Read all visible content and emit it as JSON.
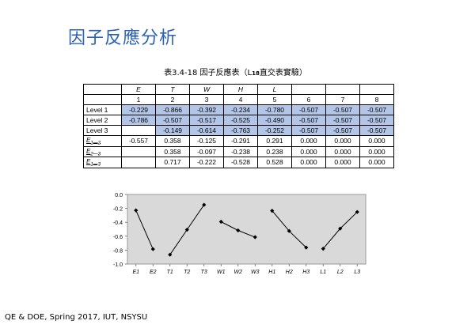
{
  "slide": {
    "title": "因子反應分析",
    "footer": "QE & DOE, Spring 2017, IUT, NSYSU"
  },
  "table": {
    "caption_main": "表3.4-18  因子反應表（L",
    "caption_sub": "18",
    "caption_tail": "直交表實驗）",
    "factor_row": [
      "E",
      "T",
      "W",
      "H",
      "L",
      "",
      "",
      ""
    ],
    "column_numbers": [
      "1",
      "2",
      "3",
      "4",
      "5",
      "6",
      "7",
      "8"
    ],
    "rows": [
      {
        "label": "Level 1",
        "cells": [
          "-0.229",
          "-0.866",
          "-0.392",
          "-0.234",
          "-0.780",
          "-0.507",
          "-0.507",
          "-0.507"
        ]
      },
      {
        "label": "Level 2",
        "cells": [
          "-0.786",
          "-0.507",
          "-0.517",
          "-0.525",
          "-0.490",
          "-0.507",
          "-0.507",
          "-0.507"
        ]
      },
      {
        "label": "Level 3",
        "cells": [
          "",
          "-0.149",
          "-0.614",
          "-0.763",
          "-0.252",
          "-0.507",
          "-0.507",
          "-0.507"
        ]
      },
      {
        "label_base": "E",
        "label_sub": "1—2",
        "cells": [
          "-0.557",
          "0.358",
          "-0.125",
          "-0.291",
          "0.291",
          "0.000",
          "0.000",
          "0.000"
        ]
      },
      {
        "label_base": "E",
        "label_sub": "2—3",
        "cells": [
          "",
          "0.358",
          "-0.097",
          "-0.238",
          "0.238",
          "0.000",
          "0.000",
          "0.000"
        ]
      },
      {
        "label_base": "E",
        "label_sub": "1—3",
        "cells": [
          "",
          "0.717",
          "-0.222",
          "-0.528",
          "0.528",
          "0.000",
          "0.000",
          "0.000"
        ]
      }
    ]
  },
  "chart_data": {
    "type": "line",
    "title": "",
    "xlabel": "",
    "ylabel": "",
    "ylim": [
      -1.0,
      0.0
    ],
    "yticks": [
      "0.0",
      "-0.2",
      "-0.4",
      "-0.6",
      "-0.8",
      "-1.0"
    ],
    "ytick_values": [
      0.0,
      -0.2,
      -0.4,
      -0.6,
      -0.8,
      -1.0
    ],
    "categories": [
      "E1",
      "E2",
      "T1",
      "T2",
      "T3",
      "W1",
      "W2",
      "W3",
      "H1",
      "H2",
      "H3",
      "L1",
      "L2",
      "L3"
    ],
    "groups": [
      {
        "x": [
          "E1",
          "E2"
        ],
        "values": [
          -0.229,
          -0.786
        ]
      },
      {
        "x": [
          "T1",
          "T2",
          "T3"
        ],
        "values": [
          -0.866,
          -0.507,
          -0.149
        ]
      },
      {
        "x": [
          "W1",
          "W2",
          "W3"
        ],
        "values": [
          -0.392,
          -0.517,
          -0.614
        ]
      },
      {
        "x": [
          "H1",
          "H2",
          "H3"
        ],
        "values": [
          -0.234,
          -0.525,
          -0.763
        ]
      },
      {
        "x": [
          "L1",
          "L2",
          "L3"
        ],
        "values": [
          -0.78,
          -0.49,
          -0.252
        ]
      }
    ],
    "grid": false,
    "background_color": "#d9d9d9",
    "line_color": "#000000",
    "marker": "diamond"
  }
}
